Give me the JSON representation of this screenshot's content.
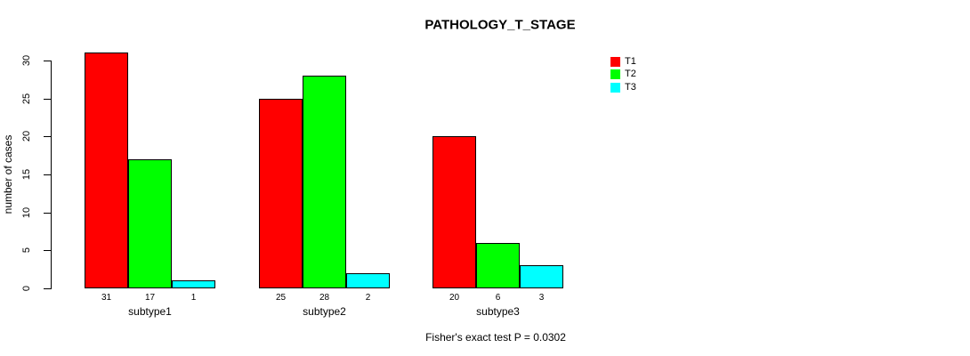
{
  "chart_data": {
    "type": "bar",
    "title": "PATHOLOGY_T_STAGE",
    "ylabel": "number of cases",
    "xlabel": "",
    "categories": [
      "subtype1",
      "subtype2",
      "subtype3"
    ],
    "series": [
      {
        "name": "T1",
        "color": "#ff0000",
        "values": [
          31,
          25,
          20
        ]
      },
      {
        "name": "T2",
        "color": "#00ff00",
        "values": [
          17,
          28,
          6
        ]
      },
      {
        "name": "T3",
        "color": "#00ffff",
        "values": [
          1,
          2,
          3
        ]
      }
    ],
    "y_ticks": [
      0,
      5,
      10,
      15,
      20,
      25,
      30
    ],
    "ylim": [
      0,
      30
    ],
    "grid": false,
    "bar_value_labels_shown": true,
    "legend_position": "top-right",
    "axis_color": "#000000",
    "bar_border_color": "#000000",
    "annotation": "Fisher's exact test P = 0.0302"
  }
}
